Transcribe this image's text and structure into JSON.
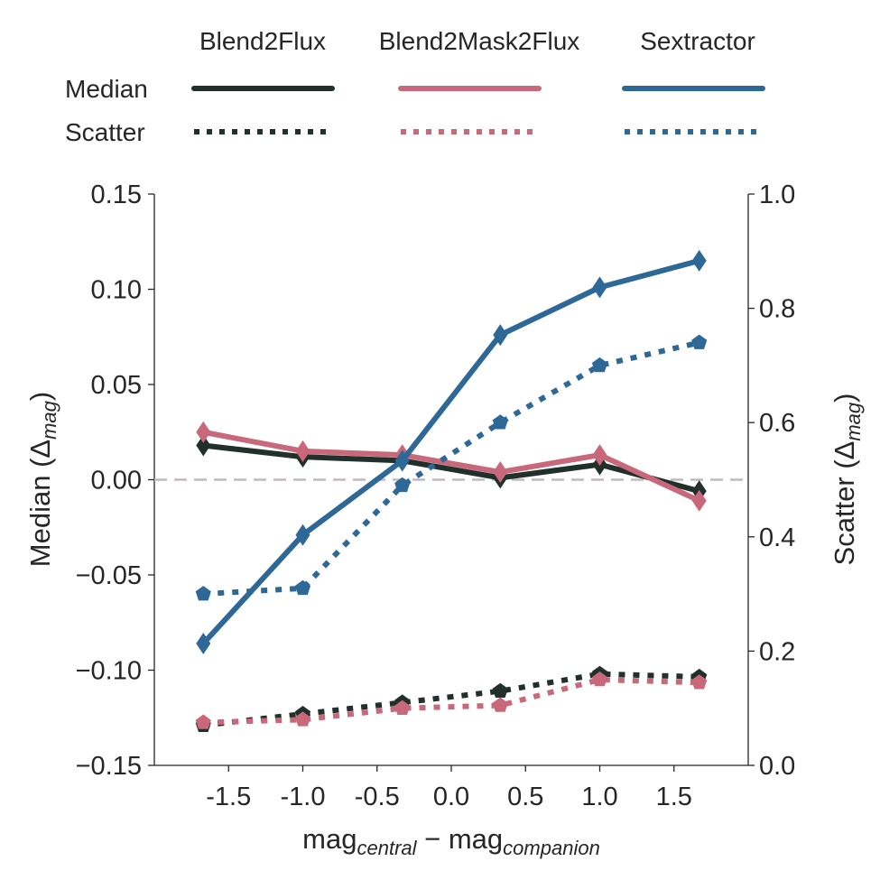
{
  "chart_data": {
    "type": "line",
    "x": [
      -1.67,
      -1.0,
      -0.33,
      0.33,
      1.0,
      1.67
    ],
    "xlabel": {
      "main": "mag",
      "sub1": "central",
      "minus": " − mag",
      "sub2": "companion"
    },
    "ylabel_left": {
      "main": "Median (Δ",
      "sub": "mag",
      "close": ")"
    },
    "ylabel_right": {
      "main": "Scatter (Δ",
      "sub": "mag",
      "close": ")"
    },
    "xlim": [
      -2.0,
      2.0
    ],
    "ylim_left": [
      -0.15,
      0.15
    ],
    "ylim_right": [
      0.0,
      1.0
    ],
    "x_ticks": [
      -1.5,
      -1.0,
      -0.5,
      0.0,
      0.5,
      1.0,
      1.5
    ],
    "x_tick_labels": [
      "-1.5",
      "-1.0",
      "-0.5",
      "0.0",
      "0.5",
      "1.0",
      "1.5"
    ],
    "y_left_ticks": [
      -0.15,
      -0.1,
      -0.05,
      0.0,
      0.05,
      0.1,
      0.15
    ],
    "y_left_tick_labels": [
      "−0.15",
      "−0.10",
      "−0.05",
      "0.00",
      "0.05",
      "0.10",
      "0.15"
    ],
    "y_right_ticks": [
      0.0,
      0.2,
      0.4,
      0.6,
      0.8,
      1.0
    ],
    "y_right_tick_labels": [
      "0.0",
      "0.2",
      "0.4",
      "0.6",
      "0.8",
      "1.0"
    ],
    "reference_line": {
      "axis": "left",
      "y": 0.0,
      "style": "dashed",
      "color": "#c0b8bc"
    },
    "legend": {
      "row_labels": [
        "Median",
        "Scatter"
      ],
      "placement": "top"
    },
    "series": [
      {
        "name": "Blend2Flux",
        "color": "#21302a",
        "median": [
          0.018,
          0.012,
          0.01,
          0.001,
          0.008,
          -0.006
        ],
        "scatter": [
          0.07,
          0.09,
          0.11,
          0.13,
          0.16,
          0.155
        ]
      },
      {
        "name": "Blend2Mask2Flux",
        "color": "#c8687a",
        "median": [
          0.025,
          0.015,
          0.013,
          0.004,
          0.013,
          -0.011
        ],
        "scatter": [
          0.075,
          0.08,
          0.1,
          0.105,
          0.15,
          0.145
        ]
      },
      {
        "name": "Sextractor",
        "color": "#2e6896",
        "median": [
          -0.086,
          -0.029,
          0.01,
          0.076,
          0.101,
          0.115
        ],
        "scatter": [
          0.3,
          0.31,
          0.49,
          0.6,
          0.7,
          0.74
        ]
      }
    ]
  }
}
